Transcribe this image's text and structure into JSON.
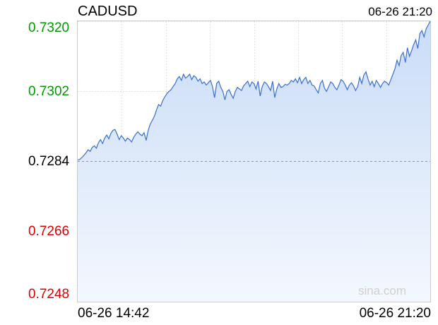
{
  "header": {
    "symbol": "CADUSD",
    "timestamp": "06-26 21:20"
  },
  "watermark": "sina.com",
  "colors": {
    "up": "#009900",
    "down": "#dd0000",
    "neutral": "#000000",
    "line": "#3a6fd0",
    "fill_top": "#c9dcf7",
    "fill_bottom": "#f4f8fe"
  },
  "chart_data": {
    "type": "area",
    "title": "CADUSD",
    "ylim": [
      0.7248,
      0.732
    ],
    "reference": 0.7284,
    "y_ticks": [
      "0.7320",
      "0.7302",
      "0.7284",
      "0.7266",
      "0.7248"
    ],
    "x_tick_labels": [
      "06-26 14:42",
      "06-26 21:20"
    ],
    "grid": true,
    "values": [
      0.72844,
      0.72845,
      0.7285,
      0.72856,
      0.72862,
      0.7287,
      0.72866,
      0.72876,
      0.7288,
      0.72874,
      0.72888,
      0.72896,
      0.72886,
      0.729,
      0.72908,
      0.72898,
      0.72912,
      0.7292,
      0.72922,
      0.7291,
      0.72896,
      0.72906,
      0.729,
      0.72892,
      0.729,
      0.72896,
      0.7289,
      0.72902,
      0.7291,
      0.72916,
      0.7291,
      0.72906,
      0.72914,
      0.72894,
      0.7292,
      0.72936,
      0.72946,
      0.72956,
      0.72972,
      0.72986,
      0.72982,
      0.72996,
      0.73006,
      0.73014,
      0.7302,
      0.73024,
      0.73032,
      0.7304,
      0.73052,
      0.73058,
      0.73048,
      0.73064,
      0.73054,
      0.73058,
      0.73064,
      0.7305,
      0.7306,
      0.73056,
      0.73046,
      0.73052,
      0.7304,
      0.73044,
      0.73036,
      0.73042,
      0.73048,
      0.73032,
      0.73004,
      0.7304,
      0.73046,
      0.7303,
      0.7302,
      0.72998,
      0.7302,
      0.73024,
      0.73012,
      0.73002,
      0.7302,
      0.7303,
      0.73026,
      0.73022,
      0.73034,
      0.7304,
      0.73046,
      0.73032,
      0.73044,
      0.7304,
      0.73026,
      0.73046,
      0.73008,
      0.73032,
      0.73044,
      0.7304,
      0.73032,
      0.73022,
      0.73046,
      0.73004,
      0.73026,
      0.7304,
      0.7303,
      0.73032,
      0.73038,
      0.73036,
      0.7304,
      0.73048,
      0.73044,
      0.73052,
      0.73042,
      0.73056,
      0.7304,
      0.7305,
      0.73056,
      0.7304,
      0.73048,
      0.73036,
      0.73034,
      0.73024,
      0.73016,
      0.7304,
      0.73048,
      0.73028,
      0.7302,
      0.73032,
      0.73044,
      0.7304,
      0.7303,
      0.73024,
      0.73036,
      0.7305,
      0.73046,
      0.73036,
      0.73024,
      0.73036,
      0.73042,
      0.73034,
      0.73022,
      0.73032,
      0.73056,
      0.7304,
      0.73062,
      0.7307,
      0.73052,
      0.73036,
      0.73046,
      0.73032,
      0.73048,
      0.7304,
      0.7303,
      0.7304,
      0.73046,
      0.73042,
      0.73036,
      0.7305,
      0.73064,
      0.73078,
      0.731,
      0.73086,
      0.73112,
      0.7312,
      0.73094,
      0.73132,
      0.7311,
      0.73124,
      0.7314,
      0.73152,
      0.7313,
      0.73168,
      0.73176,
      0.7316,
      0.7318,
      0.7319,
      0.732
    ]
  }
}
